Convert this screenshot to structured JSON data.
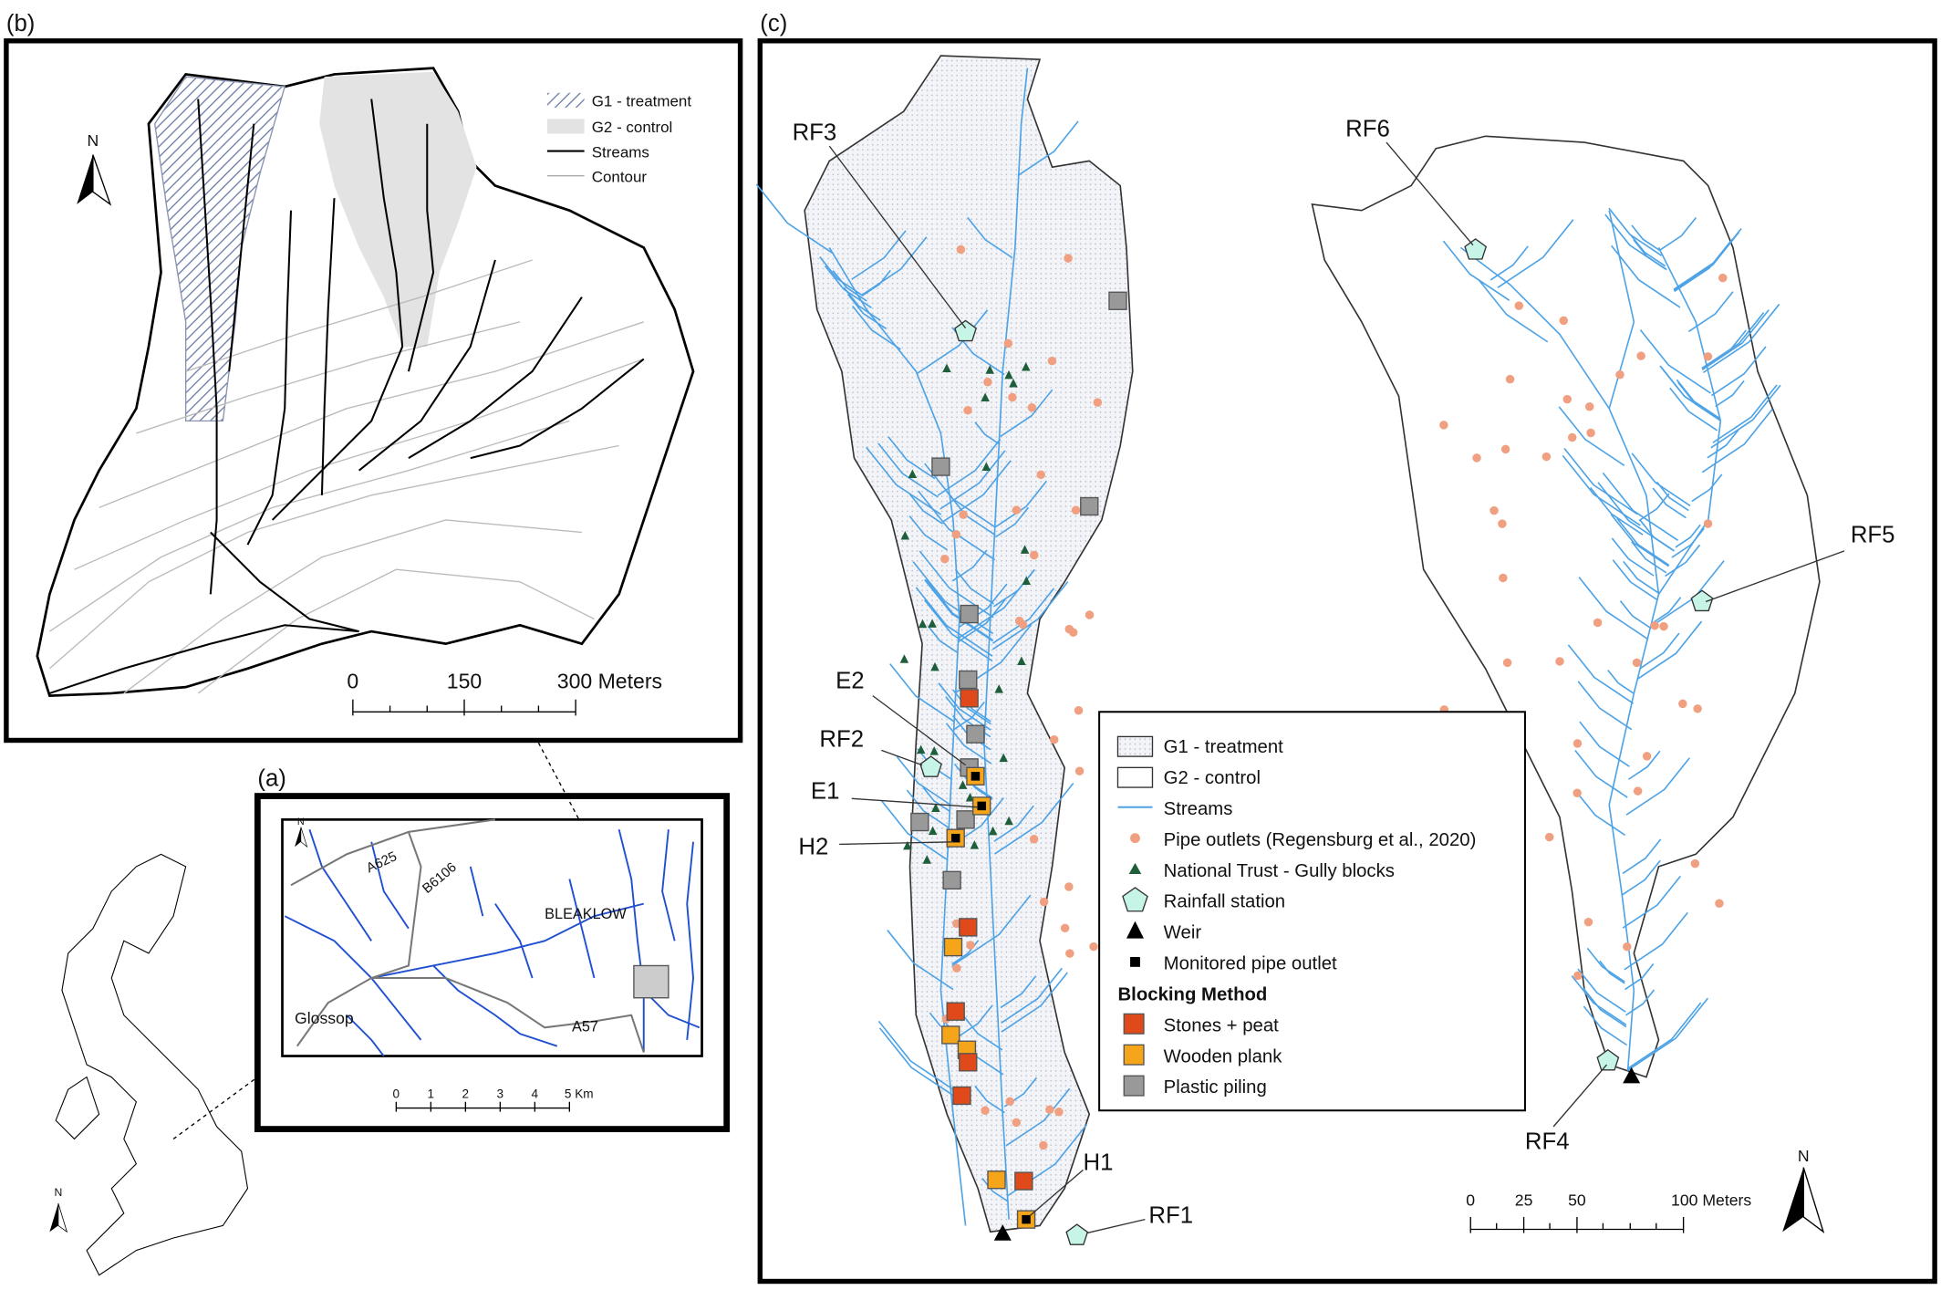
{
  "panel_b": {
    "label": "(b)",
    "north": "N",
    "legend": [
      "G1 - treatment",
      "G2 - control",
      "Streams",
      "Contour"
    ],
    "scale": [
      "0",
      "150",
      "300 Meters"
    ]
  },
  "panel_a": {
    "label": "(a)",
    "north": "N",
    "places": [
      "A625",
      "B6106",
      "BLEAKLOW",
      "Glossop",
      "A57"
    ],
    "scale": [
      "0",
      "1",
      "2",
      "3",
      "4",
      "5 Km"
    ]
  },
  "uk_map": {
    "north": "N"
  },
  "panel_c": {
    "label": "(c)",
    "sites": [
      "RF3",
      "RF6",
      "RF5",
      "E2",
      "RF2",
      "E1",
      "H2",
      "H1",
      "RF1",
      "RF4"
    ],
    "legend": [
      "G1 - treatment",
      "G2 - control",
      "Streams",
      "Pipe outlets (Regensburg et al., 2020)",
      "National Trust - Gully blocks",
      "Rainfall station",
      "Weir",
      "Monitored pipe outlet"
    ],
    "blocking_title": "Blocking Method",
    "blocking": [
      "Stones + peat",
      "Wooden plank",
      "Plastic piling"
    ],
    "scale": [
      "0",
      "25",
      "50",
      "100 Meters"
    ],
    "north": "N"
  }
}
